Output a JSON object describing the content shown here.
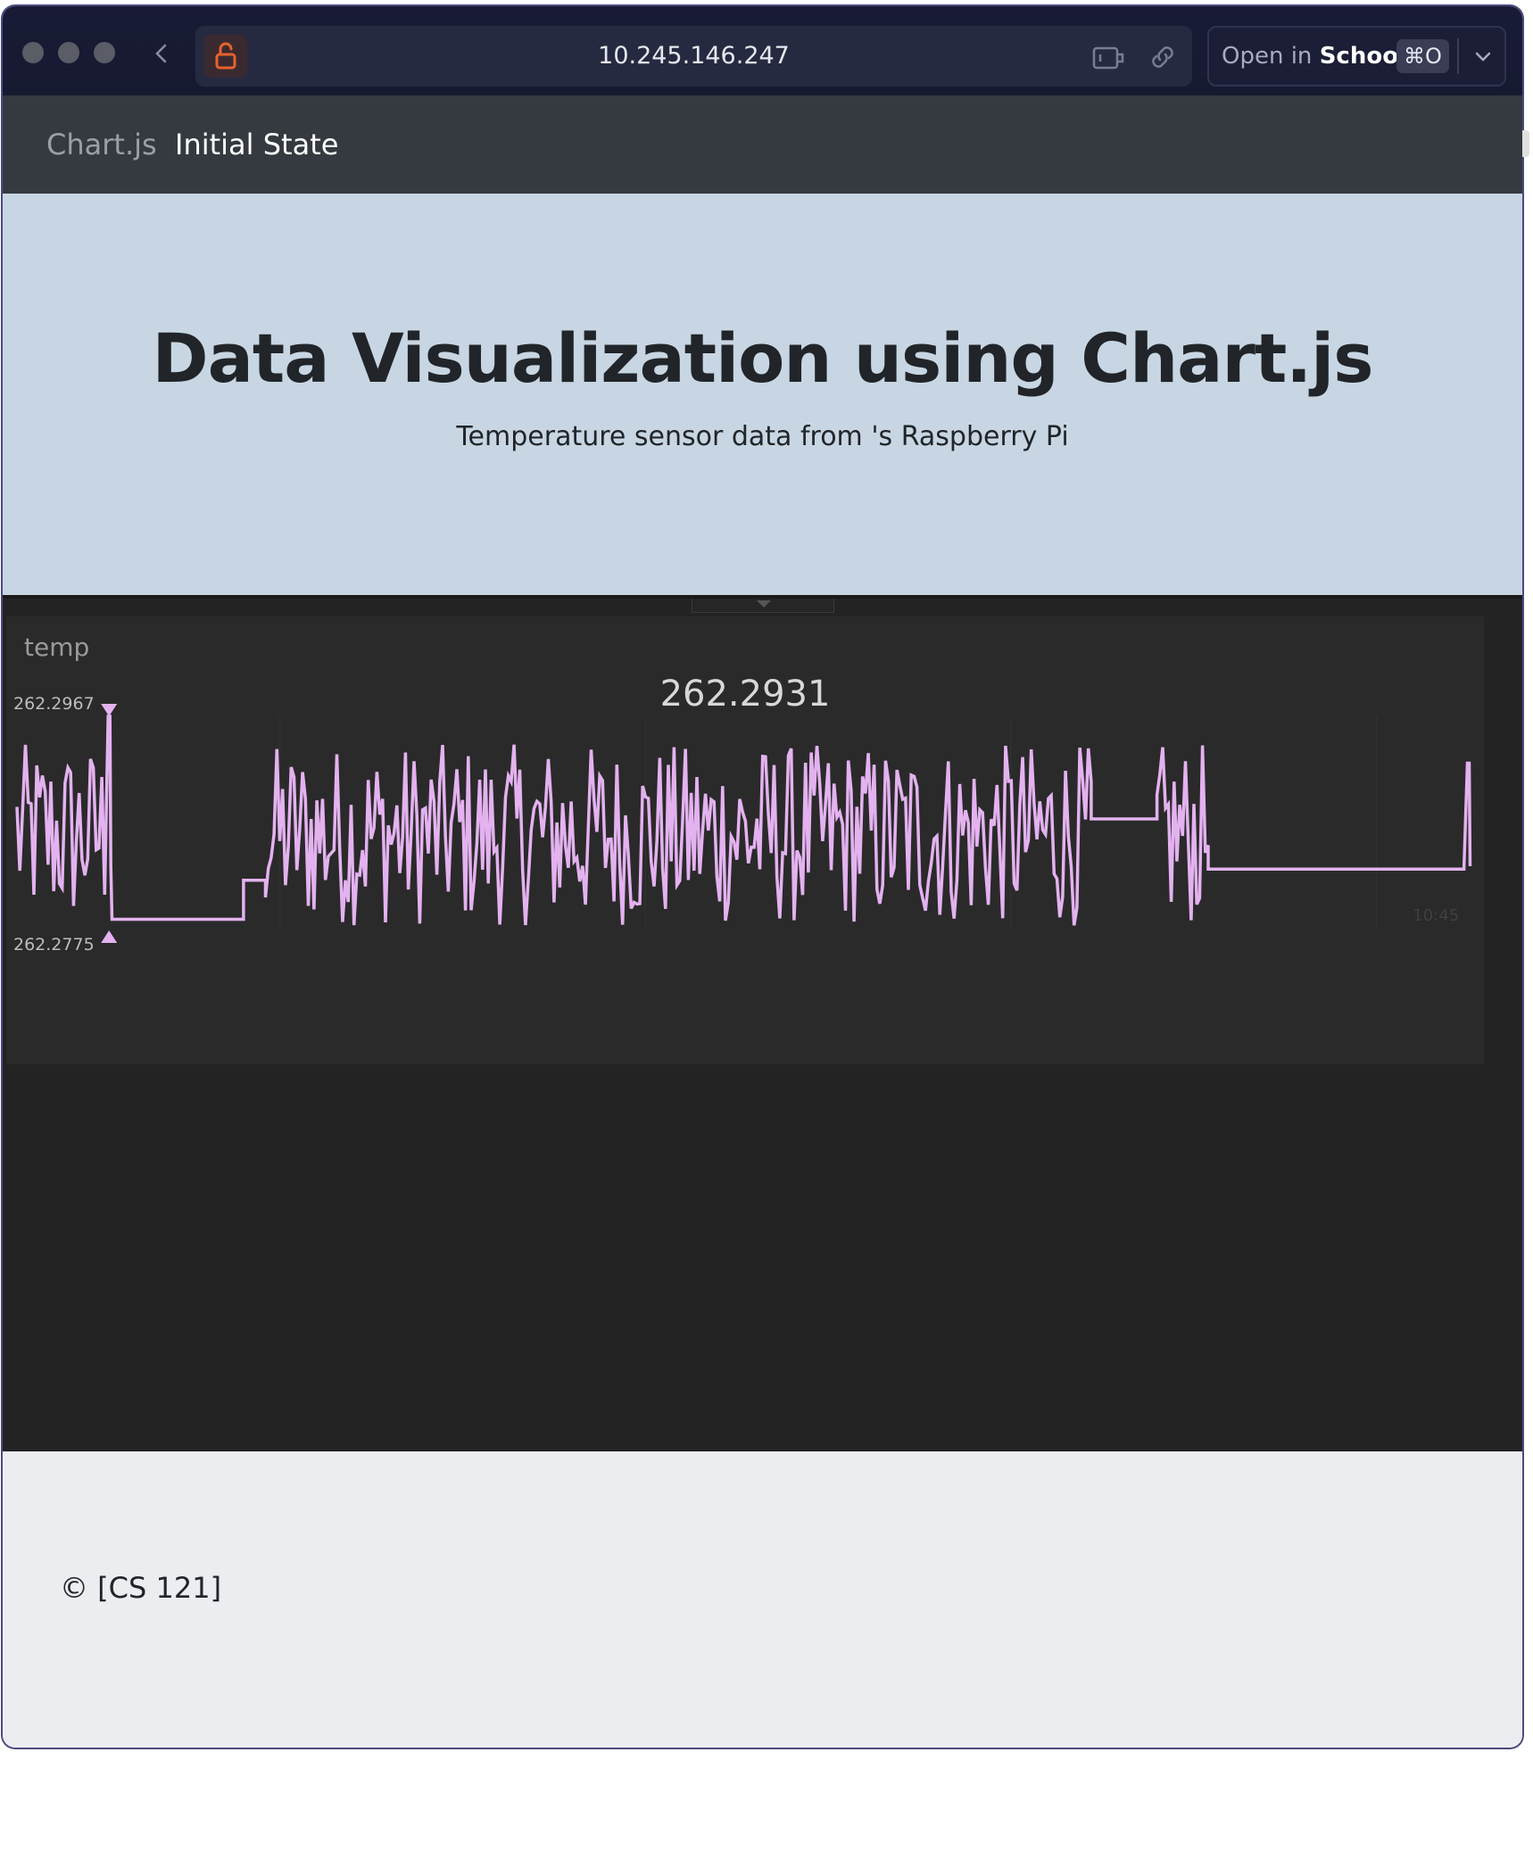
{
  "browser": {
    "url": "10.245.146.247",
    "open_in_prefix": "Open in",
    "open_in_target": "School",
    "open_in_shortcut": "⌘O"
  },
  "navbar": {
    "brand": "Chart.js",
    "active": "Initial State"
  },
  "hero": {
    "title": "Data Visualization using Chart.js",
    "subtitle": "Temperature sensor data from 's Raspberry Pi"
  },
  "tile": {
    "label": "temp",
    "current_value": "262.2931"
  },
  "footer": {
    "text": "© [CS 121]"
  },
  "colors": {
    "line": "#e3b2ef",
    "tile_bg": "#2a2a2a",
    "embed_bg": "#232323"
  },
  "chart_data": {
    "type": "line",
    "max_label": "262.2967",
    "min_label": "262.2775",
    "ylim": [
      262.2775,
      262.2967
    ],
    "x_tick_labels": [
      "",
      "",
      "",
      "10:45"
    ],
    "grid": true,
    "segments": [
      {
        "kind": "noise",
        "x": [
          0.0,
          0.06
        ]
      },
      {
        "kind": "spike",
        "x": 0.063,
        "y": 262.2967
      },
      {
        "kind": "flat",
        "x": [
          0.065,
          0.155
        ],
        "y": 262.2785
      },
      {
        "kind": "step",
        "x": [
          0.155,
          0.17
        ],
        "y": 262.282
      },
      {
        "kind": "noise",
        "x": [
          0.17,
          0.735
        ]
      },
      {
        "kind": "flat",
        "x": [
          0.735,
          0.78
        ],
        "y": 262.2875
      },
      {
        "kind": "noise",
        "x": [
          0.78,
          0.815
        ]
      },
      {
        "kind": "flat",
        "x": [
          0.815,
          0.99
        ],
        "y": 262.283
      },
      {
        "kind": "spike",
        "x": 0.993,
        "y": 262.2925
      }
    ]
  }
}
